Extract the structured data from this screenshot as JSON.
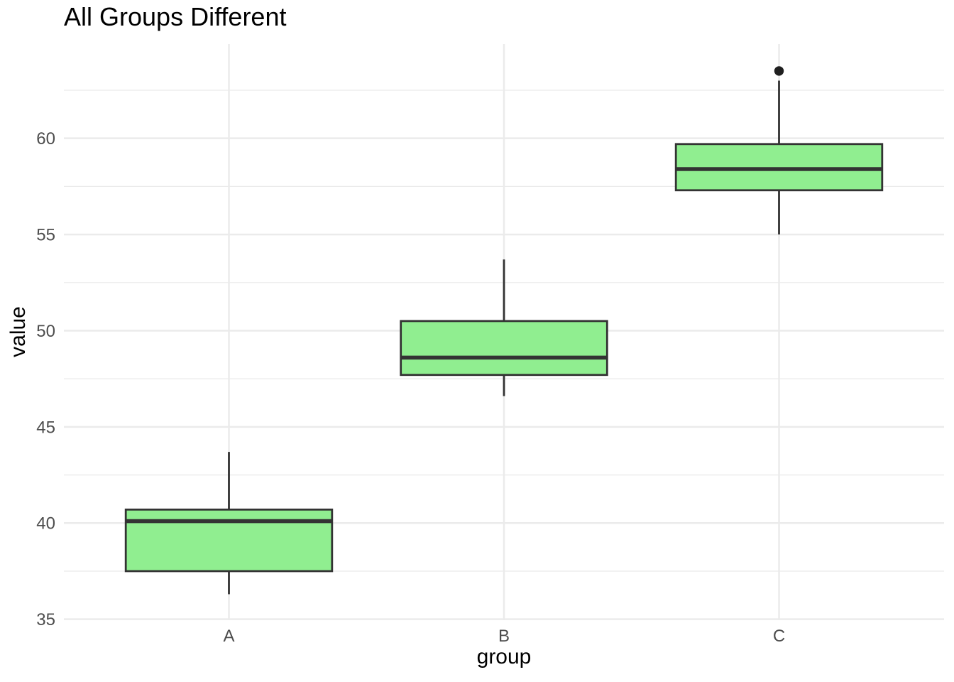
{
  "chart_data": {
    "type": "boxplot",
    "title": "All Groups Different",
    "xlabel": "group",
    "ylabel": "value",
    "categories": [
      "A",
      "B",
      "C"
    ],
    "series": [
      {
        "group": "A",
        "whisker_low": 36.3,
        "q1": 37.5,
        "median": 40.1,
        "q3": 40.7,
        "whisker_high": 43.7,
        "outliers": []
      },
      {
        "group": "B",
        "whisker_low": 46.6,
        "q1": 47.7,
        "median": 48.6,
        "q3": 50.5,
        "whisker_high": 53.7,
        "outliers": []
      },
      {
        "group": "C",
        "whisker_low": 55.0,
        "q1": 57.3,
        "median": 58.4,
        "q3": 59.7,
        "whisker_high": 63.0,
        "outliers": [
          63.5
        ]
      }
    ],
    "y_ticks": [
      35,
      40,
      45,
      50,
      55,
      60
    ],
    "y_minor_ticks": [
      37.5,
      42.5,
      47.5,
      52.5,
      57.5,
      62.5
    ],
    "ylim": [
      34.95,
      64.9
    ],
    "grid": "horizontal major+minor, vertical major at each category; no axis lines, no tick marks",
    "legend": "none",
    "colors": {
      "background": "#FFFFFF",
      "gridline": "#EBEBEB",
      "box_fill": "#90EE90",
      "box_border": "#333333",
      "median": "#333333",
      "whisker": "#333333",
      "outlier": "#1F1F1F",
      "tick_label": "#4D4D4D",
      "axis_title": "#000000",
      "title": "#000000"
    }
  }
}
